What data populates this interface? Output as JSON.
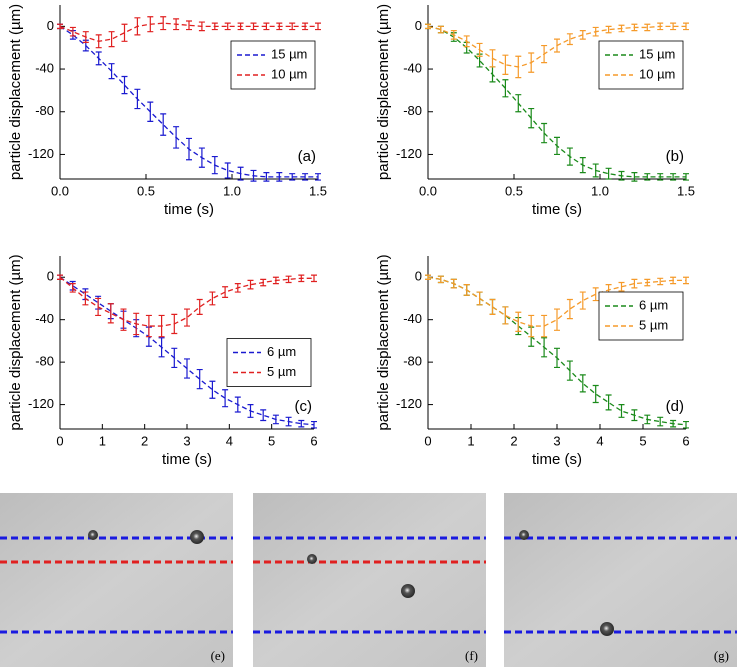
{
  "chart_data": [
    {
      "type": "line",
      "panel": "(a)",
      "xlabel": "time (s)",
      "ylabel": "particle displacement (µm)",
      "x": [
        0,
        0.075,
        0.15,
        0.225,
        0.3,
        0.375,
        0.45,
        0.525,
        0.6,
        0.675,
        0.75,
        0.825,
        0.9,
        0.975,
        1.05,
        1.125,
        1.2,
        1.275,
        1.35,
        1.425,
        1.5
      ],
      "xlim": [
        0,
        1.5
      ],
      "xticks": [
        {
          "value": 0,
          "label": "0.0"
        },
        {
          "value": 0.5,
          "label": "0.5"
        },
        {
          "value": 1,
          "label": "1.0"
        },
        {
          "value": 1.5,
          "label": "1.5"
        }
      ],
      "ylim": [
        -143,
        20
      ],
      "yticks": [
        -120,
        -80,
        -40,
        0
      ],
      "legend": "upper right",
      "series": [
        {
          "name": "15 µm",
          "color": "#1a1ad0",
          "values": [
            0,
            -8,
            -18,
            -30,
            -42,
            -55,
            -68,
            -80,
            -92,
            -104,
            -115,
            -123,
            -130,
            -135,
            -138,
            -140,
            -141,
            -141,
            -141,
            -141,
            -141
          ],
          "errors": [
            2,
            4,
            5,
            6,
            7,
            8,
            9,
            9,
            10,
            10,
            10,
            9,
            8,
            7,
            6,
            5,
            4,
            4,
            3,
            3,
            3
          ]
        },
        {
          "name": "10 µm",
          "color": "#e02020",
          "values": [
            0,
            -5,
            -10,
            -14,
            -12,
            -6,
            0,
            2,
            3,
            2,
            1,
            0,
            0,
            0,
            0,
            0,
            0,
            0,
            0,
            0,
            0
          ],
          "errors": [
            2,
            4,
            5,
            6,
            7,
            8,
            8,
            7,
            6,
            5,
            4,
            4,
            3,
            3,
            3,
            3,
            3,
            3,
            3,
            3,
            3
          ]
        }
      ]
    },
    {
      "type": "line",
      "panel": "(b)",
      "xlabel": "time (s)",
      "ylabel": "particle displacement (µm)",
      "x": [
        0,
        0.075,
        0.15,
        0.225,
        0.3,
        0.375,
        0.45,
        0.525,
        0.6,
        0.675,
        0.75,
        0.825,
        0.9,
        0.975,
        1.05,
        1.125,
        1.2,
        1.275,
        1.35,
        1.425,
        1.5
      ],
      "xlim": [
        0,
        1.5
      ],
      "xticks": [
        {
          "value": 0,
          "label": "0.0"
        },
        {
          "value": 0.5,
          "label": "0.5"
        },
        {
          "value": 1,
          "label": "1.0"
        },
        {
          "value": 1.5,
          "label": "1.5"
        }
      ],
      "ylim": [
        -143,
        20
      ],
      "yticks": [
        -120,
        -80,
        -40,
        0
      ],
      "legend": "upper right",
      "series": [
        {
          "name": "15 µm",
          "color": "#1a8a1a",
          "values": [
            0,
            -3,
            -10,
            -20,
            -32,
            -45,
            -58,
            -72,
            -86,
            -100,
            -112,
            -122,
            -130,
            -135,
            -138,
            -140,
            -141,
            -141,
            -141,
            -141,
            -141
          ],
          "errors": [
            2,
            3,
            4,
            5,
            6,
            7,
            8,
            8,
            9,
            9,
            8,
            8,
            7,
            6,
            5,
            4,
            4,
            3,
            3,
            3,
            3
          ]
        },
        {
          "name": "10 µm",
          "color": "#f59a2a",
          "values": [
            0,
            -3,
            -8,
            -14,
            -22,
            -30,
            -36,
            -38,
            -34,
            -26,
            -18,
            -12,
            -8,
            -5,
            -3,
            -2,
            -1,
            -1,
            0,
            0,
            0
          ],
          "errors": [
            2,
            3,
            4,
            5,
            6,
            8,
            9,
            10,
            9,
            8,
            6,
            5,
            4,
            4,
            3,
            3,
            3,
            3,
            3,
            3,
            3
          ]
        }
      ]
    },
    {
      "type": "line",
      "panel": "(c)",
      "xlabel": "time (s)",
      "ylabel": "particle displacement (µm)",
      "x": [
        0,
        0.3,
        0.6,
        0.9,
        1.2,
        1.5,
        1.8,
        2.1,
        2.4,
        2.7,
        3,
        3.3,
        3.6,
        3.9,
        4.2,
        4.5,
        4.8,
        5.1,
        5.4,
        5.7,
        6
      ],
      "xlim": [
        0,
        6
      ],
      "xticks": [
        0,
        1,
        2,
        3,
        4,
        5,
        6
      ],
      "ylim": [
        -143,
        20
      ],
      "yticks": [
        -120,
        -80,
        -40,
        0
      ],
      "legend": "center right",
      "series": [
        {
          "name": "6 µm",
          "color": "#1a1ad0",
          "values": [
            0,
            -8,
            -16,
            -24,
            -32,
            -40,
            -48,
            -56,
            -66,
            -76,
            -86,
            -96,
            -106,
            -114,
            -120,
            -126,
            -130,
            -134,
            -136,
            -138,
            -139
          ],
          "errors": [
            2,
            4,
            5,
            6,
            7,
            8,
            8,
            9,
            9,
            9,
            9,
            9,
            8,
            8,
            7,
            6,
            5,
            4,
            4,
            3,
            3
          ]
        },
        {
          "name": "5 µm",
          "color": "#e02020",
          "values": [
            0,
            -10,
            -20,
            -28,
            -34,
            -40,
            -44,
            -46,
            -46,
            -44,
            -38,
            -28,
            -20,
            -14,
            -10,
            -7,
            -5,
            -3,
            -2,
            -1,
            -1
          ],
          "errors": [
            2,
            4,
            6,
            8,
            9,
            10,
            10,
            10,
            10,
            9,
            8,
            7,
            6,
            5,
            4,
            4,
            3,
            3,
            3,
            3,
            3
          ]
        }
      ]
    },
    {
      "type": "line",
      "panel": "(d)",
      "xlabel": "time (s)",
      "ylabel": "particle displacement (µm)",
      "x": [
        0,
        0.3,
        0.6,
        0.9,
        1.2,
        1.5,
        1.8,
        2.1,
        2.4,
        2.7,
        3,
        3.3,
        3.6,
        3.9,
        4.2,
        4.5,
        4.8,
        5.1,
        5.4,
        5.7,
        6
      ],
      "xlim": [
        0,
        6
      ],
      "xticks": [
        0,
        1,
        2,
        3,
        4,
        5,
        6
      ],
      "ylim": [
        -143,
        20
      ],
      "yticks": [
        -120,
        -80,
        -40,
        0
      ],
      "legend": "upper right",
      "series": [
        {
          "name": "6 µm",
          "color": "#1a8a1a",
          "values": [
            0,
            -2,
            -6,
            -12,
            -20,
            -28,
            -36,
            -46,
            -56,
            -66,
            -76,
            -88,
            -100,
            -110,
            -118,
            -126,
            -130,
            -134,
            -136,
            -138,
            -139
          ],
          "errors": [
            2,
            3,
            4,
            5,
            6,
            7,
            8,
            8,
            9,
            9,
            9,
            9,
            8,
            8,
            7,
            6,
            5,
            4,
            4,
            3,
            3
          ]
        },
        {
          "name": "5 µm",
          "color": "#f59a2a",
          "values": [
            0,
            -2,
            -6,
            -12,
            -20,
            -28,
            -36,
            -42,
            -46,
            -46,
            -40,
            -30,
            -22,
            -16,
            -12,
            -9,
            -6,
            -5,
            -4,
            -3,
            -3
          ],
          "errors": [
            2,
            3,
            4,
            5,
            6,
            7,
            8,
            9,
            10,
            10,
            10,
            9,
            8,
            6,
            5,
            4,
            4,
            3,
            3,
            3,
            3
          ]
        }
      ]
    }
  ],
  "images": [
    "(e)",
    "(f)",
    "(g)"
  ]
}
